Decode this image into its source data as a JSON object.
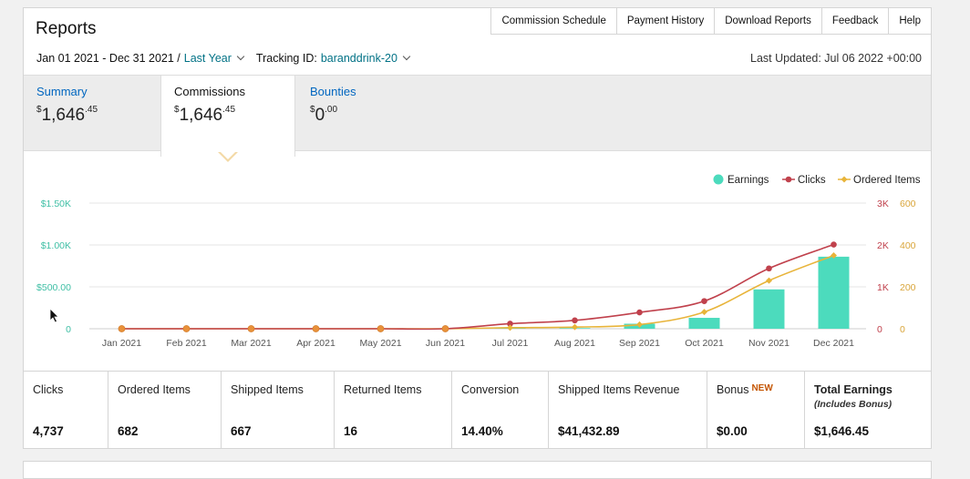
{
  "header": {
    "title": "Reports",
    "nav": [
      "Commission Schedule",
      "Payment History",
      "Download Reports",
      "Feedback",
      "Help"
    ]
  },
  "filter": {
    "date_range": "Jan 01 2021 - Dec 31 2021 /",
    "period": "Last Year",
    "tracking_label": "Tracking ID:",
    "tracking_id": "baranddrink-20",
    "last_updated": "Last Updated: Jul 06 2022 +00:00"
  },
  "tabs": [
    {
      "label": "Summary",
      "currency": "$",
      "whole": "1,646",
      "cents": ".45"
    },
    {
      "label": "Commissions",
      "currency": "$",
      "whole": "1,646",
      "cents": ".45"
    },
    {
      "label": "Bounties",
      "currency": "$",
      "whole": "0",
      "cents": ".00"
    }
  ],
  "chart_data": {
    "type": "bar",
    "categories": [
      "Jan 2021",
      "Feb 2021",
      "Mar 2021",
      "Apr 2021",
      "May 2021",
      "Jun 2021",
      "Jul 2021",
      "Aug 2021",
      "Sep 2021",
      "Oct 2021",
      "Nov 2021",
      "Dec 2021"
    ],
    "legend_position": "top-right",
    "series": [
      {
        "name": "Earnings",
        "type": "bar",
        "axis": "left",
        "color": "#4cdbbd",
        "values": [
          0,
          0,
          0,
          0,
          0,
          0,
          5,
          8,
          60,
          130,
          470,
          860
        ]
      },
      {
        "name": "Clicks",
        "type": "line",
        "axis": "right1",
        "color": "#c0414c",
        "values": [
          0,
          0,
          0,
          0,
          0,
          0,
          120,
          200,
          390,
          660,
          1440,
          2010
        ]
      },
      {
        "name": "Ordered Items",
        "type": "line",
        "axis": "right2",
        "color": "#e8b43a",
        "values": [
          0,
          0,
          0,
          0,
          0,
          0,
          5,
          8,
          20,
          80,
          230,
          350
        ]
      }
    ],
    "left_axis": {
      "ticks": [
        "0",
        "$500.00",
        "$1.00K",
        "$1.50K"
      ],
      "range": [
        0,
        1500
      ],
      "color": "#3fbfa5"
    },
    "right_axis_1": {
      "ticks": [
        "0",
        "1K",
        "2K",
        "3K"
      ],
      "range": [
        0,
        3000
      ],
      "color": "#c0414c"
    },
    "right_axis_2": {
      "ticks": [
        "0",
        "200",
        "400",
        "600"
      ],
      "range": [
        0,
        600
      ],
      "color": "#d9a53a"
    }
  },
  "stats": [
    {
      "label": "Clicks",
      "value": "4,737"
    },
    {
      "label": "Ordered Items",
      "value": "682"
    },
    {
      "label": "Shipped Items",
      "value": "667"
    },
    {
      "label": "Returned Items",
      "value": "16"
    },
    {
      "label": "Conversion",
      "value": "14.40%"
    },
    {
      "label": "Shipped Items Revenue",
      "value": "$41,432.89"
    },
    {
      "label": "Bonus",
      "badge": "NEW",
      "value": "$0.00"
    },
    {
      "label": "Total Earnings",
      "sublabel": "(Includes Bonus)",
      "value": "$1,646.45"
    }
  ]
}
